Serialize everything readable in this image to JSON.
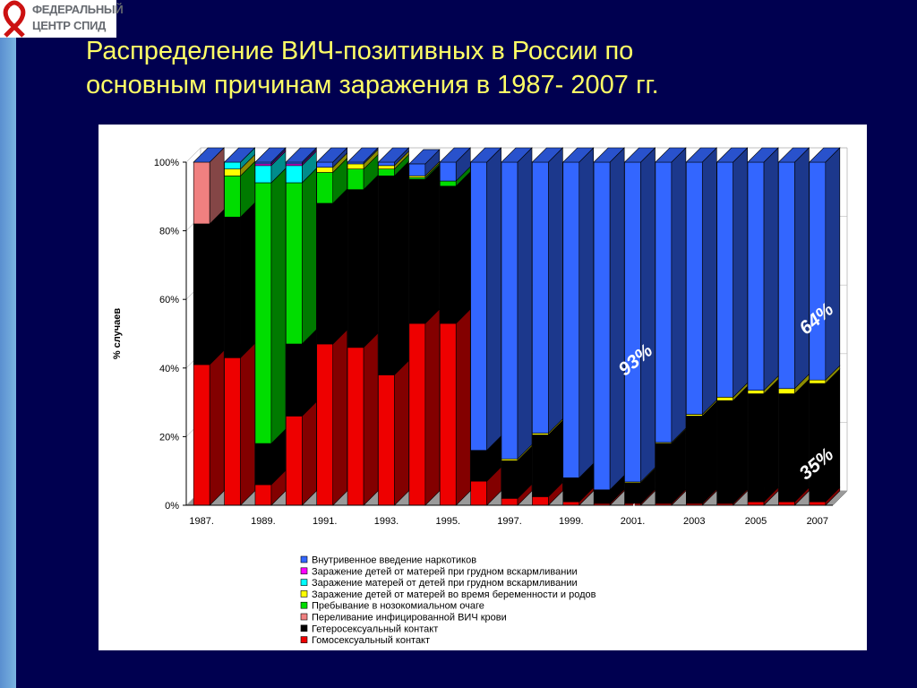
{
  "slide": {
    "logo_line1": "ФЕДЕРАЛЬНЫЙ",
    "logo_line2": "ЦЕНТР СПИД",
    "title_line1": "Распределение ВИЧ-позитивных в России по",
    "title_line2": "основным причинам заражения в 1987- 2007 гг."
  },
  "colors": {
    "background": "#000050",
    "title": "#ffff66",
    "series": [
      "#ee0000",
      "#000000",
      "#f08080",
      "#00dd00",
      "#ffff00",
      "#00ffff",
      "#ff00ff",
      "#3366ff"
    ]
  },
  "chart_data": {
    "type": "bar",
    "stacked": "percent",
    "ylabel": "% случаев",
    "ylim": [
      0,
      100
    ],
    "yticks": [
      "0%",
      "20%",
      "40%",
      "60%",
      "80%",
      "100%"
    ],
    "x": [
      "1987.",
      "1988.",
      "1989.",
      "1990.",
      "1991.",
      "1992.",
      "1993.",
      "1994.",
      "1995.",
      "1996.",
      "1997.",
      "1998.",
      "1999.",
      "2000.",
      "2001.",
      "2002.",
      "2003",
      "2004",
      "2005",
      "2006",
      "2007"
    ],
    "xtick_labels": [
      "1987.",
      "1989.",
      "1991.",
      "1993.",
      "1995.",
      "1997.",
      "1999.",
      "2001.",
      "2003",
      "2005",
      "2007"
    ],
    "series": [
      {
        "name": "Гомосексуальный контакт",
        "values": [
          41,
          43,
          6,
          26,
          47,
          46,
          38,
          53,
          53,
          7,
          2,
          2.5,
          1,
          0.5,
          0.5,
          0.5,
          0.5,
          0.5,
          1,
          1,
          1
        ]
      },
      {
        "name": "Гетеросексуальный контакт",
        "values": [
          41,
          41,
          12,
          21,
          41,
          46,
          58,
          42,
          40,
          9,
          11,
          18,
          7,
          4,
          6,
          17.5,
          25.5,
          30,
          31.5,
          31.5,
          34.5
        ]
      },
      {
        "name": "Переливание  инфицированной ВИЧ крови",
        "values": [
          18,
          0,
          0,
          0,
          0,
          0,
          0,
          0,
          0,
          0,
          0,
          0,
          0,
          0,
          0,
          0,
          0,
          0,
          0,
          0,
          0
        ]
      },
      {
        "name": "Пребывание в нозокомиальном очаге",
        "values": [
          0,
          12,
          76,
          47,
          9,
          6,
          2,
          0.5,
          1.5,
          0,
          0,
          0,
          0,
          0,
          0,
          0,
          0,
          0,
          0,
          0,
          0
        ]
      },
      {
        "name": "Заражение детей от матерей во время беременности и  родов",
        "values": [
          0,
          2,
          0,
          0,
          1.5,
          1.5,
          1,
          0.5,
          0,
          0,
          0.5,
          0.5,
          0,
          0,
          0.3,
          0.3,
          0.5,
          1,
          1,
          1.5,
          1
        ]
      },
      {
        "name": "Заражение матерей от детей при грудном вскармливании",
        "values": [
          0,
          2,
          5,
          5,
          0,
          0,
          0,
          0,
          0,
          0,
          0,
          0,
          0,
          0,
          0,
          0,
          0,
          0,
          0,
          0,
          0
        ]
      },
      {
        "name": "Заражение детей от матерей при грудном вскармливании",
        "values": [
          0,
          0,
          0.5,
          0.5,
          0,
          0,
          0,
          0,
          0,
          0,
          0,
          0,
          0,
          0,
          0,
          0,
          0,
          0,
          0,
          0,
          0
        ]
      },
      {
        "name": "Внутривенное введение наркотиков",
        "values": [
          0,
          0,
          0.5,
          0.5,
          1.5,
          0.5,
          1,
          3.5,
          5.5,
          84,
          86.5,
          79,
          92,
          95.5,
          93.2,
          81.7,
          73.5,
          68.5,
          66.5,
          66,
          63.5
        ]
      }
    ],
    "legend_order": [
      "Внутривенное введение наркотиков",
      "Заражение детей от матерей при грудном вскармливании",
      "Заражение матерей от детей при грудном вскармливании",
      "Заражение детей от матерей во время беременности и  родов",
      "Пребывание в нозокомиальном очаге",
      "Переливание  инфицированной ВИЧ крови",
      "Гетеросексуальный контакт",
      "Гомосексуальный контакт"
    ],
    "legend_position": "bottom",
    "annotations": [
      "93%",
      "64%",
      "35%",
      "%"
    ]
  }
}
